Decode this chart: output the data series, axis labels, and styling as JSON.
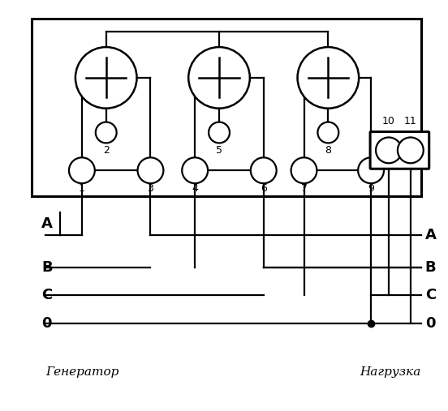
{
  "bg_color": "#ffffff",
  "line_color": "#000000",
  "title_left": "Генератор",
  "title_right": "Нагрузка",
  "phases_left": [
    "A",
    "B",
    "C",
    "0"
  ],
  "phases_right": [
    "A",
    "B",
    "C",
    "0"
  ]
}
